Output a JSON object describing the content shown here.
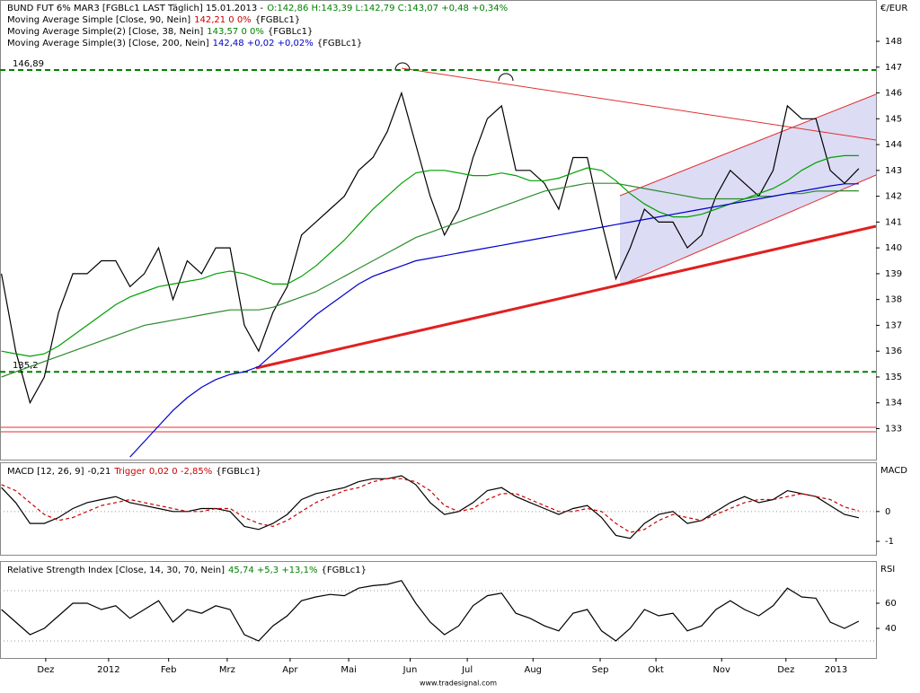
{
  "chart_data": [
    {
      "type": "line",
      "axis_title": "€/EUR",
      "xlim": [
        -0.1,
        61.2
      ],
      "ylim": [
        131.8,
        149.6
      ],
      "yticks": [
        133,
        134,
        135,
        136,
        137,
        138,
        139,
        140,
        141,
        142,
        143,
        144,
        145,
        146,
        147,
        148
      ],
      "levels": [
        {
          "value": 146.89,
          "label": "146,89"
        },
        {
          "value": 135.2,
          "label": "135,2"
        }
      ],
      "level_color": "#008000",
      "series": [
        {
          "name": "BUND FUT 6% MAR3 [FGBLc1 LAST Täglich] 15.01.2013 -",
          "legend_value": "O:142,86 H:143,39 L:142,79 C:143,07 +0,48 +0,34%",
          "legend_color": "#008000",
          "color": "#000000",
          "values": [
            139,
            136,
            134,
            135,
            137.5,
            139,
            139,
            139.5,
            139.5,
            138.5,
            139,
            140,
            138,
            139.5,
            139,
            140,
            140,
            137,
            136,
            137.5,
            138.5,
            140.5,
            141,
            141.5,
            142,
            143,
            143.5,
            144.5,
            146,
            144,
            142,
            140.5,
            141.5,
            143.5,
            145,
            145.5,
            143,
            143,
            142.5,
            141.5,
            143.5,
            143.5,
            141,
            138.8,
            140,
            141.5,
            141,
            141,
            140,
            140.5,
            142,
            143,
            142.5,
            142,
            143,
            145.5,
            145,
            145,
            143,
            142.5,
            143.07
          ]
        },
        {
          "name": "Moving Average Simple [Close, 90, Nein]",
          "legend_value": "142,21 0 0%",
          "legend_color": "#cc0000",
          "legend_suffix": "{FGBLc1}",
          "color": "#2e8b2e",
          "values": [
            135,
            135.2,
            135.4,
            135.6,
            135.8,
            136,
            136.2,
            136.4,
            136.6,
            136.8,
            137,
            137.1,
            137.2,
            137.3,
            137.4,
            137.5,
            137.6,
            137.6,
            137.6,
            137.7,
            137.9,
            138.1,
            138.3,
            138.6,
            138.9,
            139.2,
            139.5,
            139.8,
            140.1,
            140.4,
            140.6,
            140.8,
            141,
            141.2,
            141.4,
            141.6,
            141.8,
            142,
            142.2,
            142.3,
            142.4,
            142.5,
            142.5,
            142.5,
            142.4,
            142.3,
            142.2,
            142.1,
            142,
            141.9,
            141.9,
            141.9,
            141.9,
            142,
            142,
            142.1,
            142.1,
            142.2,
            142.2,
            142.21,
            142.21
          ]
        },
        {
          "name": "Moving Average Simple(2) [Close, 38, Nein]",
          "legend_value": "143,57 0 0%",
          "legend_color": "#008000",
          "legend_suffix": "{FGBLc1}",
          "color": "#00a000",
          "values": [
            136,
            135.9,
            135.8,
            135.9,
            136.2,
            136.6,
            137,
            137.4,
            137.8,
            138.1,
            138.3,
            138.5,
            138.6,
            138.7,
            138.8,
            139,
            139.1,
            139,
            138.8,
            138.6,
            138.6,
            138.9,
            139.3,
            139.8,
            140.3,
            140.9,
            141.5,
            142,
            142.5,
            142.9,
            143,
            143,
            142.9,
            142.8,
            142.8,
            142.9,
            142.8,
            142.6,
            142.6,
            142.7,
            142.9,
            143.1,
            143,
            142.6,
            142.1,
            141.7,
            141.4,
            141.2,
            141.2,
            141.3,
            141.5,
            141.7,
            141.9,
            142.1,
            142.3,
            142.6,
            143,
            143.3,
            143.5,
            143.57,
            143.57
          ]
        },
        {
          "name": "Moving Average Simple(3) [Close, 200, Nein]",
          "legend_value": "142,48 +0,02 +0,02%",
          "legend_color": "#0000cc",
          "legend_suffix": "{FGBLc1}",
          "color": "#0000cc",
          "values": [
            null,
            null,
            null,
            null,
            null,
            null,
            null,
            null,
            null,
            131.9,
            132.5,
            133.1,
            133.7,
            134.2,
            134.6,
            134.9,
            135.1,
            135.2,
            135.4,
            135.9,
            136.4,
            136.9,
            137.4,
            137.8,
            138.2,
            138.6,
            138.9,
            139.1,
            139.3,
            139.5,
            139.6,
            139.7,
            139.8,
            139.9,
            140,
            140.1,
            140.2,
            140.3,
            140.4,
            140.5,
            140.6,
            140.7,
            140.8,
            140.9,
            141,
            141.1,
            141.2,
            141.3,
            141.4,
            141.5,
            141.6,
            141.7,
            141.8,
            141.9,
            142,
            142.1,
            142.2,
            142.3,
            142.4,
            142.48,
            142.48
          ]
        }
      ]
    },
    {
      "type": "line",
      "axis_title": "MACD",
      "xlim": [
        -0.1,
        61.2
      ],
      "ylim": [
        -1.45,
        1.65
      ],
      "yticks": [
        -1,
        0
      ],
      "levels": [
        0
      ],
      "level_color": "#999999",
      "series": [
        {
          "name": "MACD [12, 26, 9]",
          "legend_value": "-0,21",
          "legend_color": "#000000",
          "color": "#000000",
          "values": [
            0.8,
            0.3,
            -0.4,
            -0.4,
            -0.2,
            0.1,
            0.3,
            0.4,
            0.5,
            0.3,
            0.2,
            0.1,
            0,
            0,
            0.1,
            0.1,
            0,
            -0.5,
            -0.6,
            -0.4,
            -0.1,
            0.4,
            0.6,
            0.7,
            0.8,
            1.0,
            1.1,
            1.1,
            1.2,
            0.9,
            0.3,
            -0.1,
            0,
            0.3,
            0.7,
            0.8,
            0.5,
            0.3,
            0.1,
            -0.1,
            0.1,
            0.2,
            -0.2,
            -0.8,
            -0.9,
            -0.4,
            -0.1,
            0,
            -0.4,
            -0.3,
            0,
            0.3,
            0.5,
            0.3,
            0.4,
            0.7,
            0.6,
            0.5,
            0.2,
            -0.1,
            -0.21
          ]
        },
        {
          "name": "Trigger",
          "legend_value": "0,02 0 -2,85%",
          "legend_color": "#cc0000",
          "legend_suffix": "{FGBLc1}",
          "color": "#cc0000",
          "dashed": true,
          "values": [
            0.9,
            0.7,
            0.3,
            -0.1,
            -0.3,
            -0.2,
            0,
            0.2,
            0.3,
            0.4,
            0.3,
            0.2,
            0.1,
            0,
            0,
            0.1,
            0.1,
            -0.2,
            -0.4,
            -0.5,
            -0.3,
            0,
            0.3,
            0.5,
            0.7,
            0.8,
            1.0,
            1.1,
            1.1,
            1.0,
            0.7,
            0.2,
            0,
            0.1,
            0.4,
            0.6,
            0.6,
            0.4,
            0.2,
            0,
            0,
            0.1,
            0,
            -0.4,
            -0.7,
            -0.6,
            -0.3,
            -0.1,
            -0.2,
            -0.3,
            -0.1,
            0.1,
            0.3,
            0.4,
            0.4,
            0.5,
            0.6,
            0.5,
            0.4,
            0.15,
            0.02
          ]
        }
      ]
    },
    {
      "type": "line",
      "axis_title": "RSI",
      "xlim": [
        -0.1,
        61.2
      ],
      "ylim": [
        16.4,
        93.6
      ],
      "yticks": [
        40,
        60
      ],
      "levels": [
        30,
        70
      ],
      "level_color": "#999999",
      "xticks": [
        {
          "value": 3.1,
          "label": "Dez"
        },
        {
          "value": 7.5,
          "label": "2012"
        },
        {
          "value": 11.7,
          "label": "Feb"
        },
        {
          "value": 15.8,
          "label": "Mrz"
        },
        {
          "value": 20.2,
          "label": "Apr"
        },
        {
          "value": 24.3,
          "label": "Mai"
        },
        {
          "value": 28.6,
          "label": "Jun"
        },
        {
          "value": 32.6,
          "label": "Jul"
        },
        {
          "value": 37.2,
          "label": "Aug"
        },
        {
          "value": 41.9,
          "label": "Sep"
        },
        {
          "value": 45.8,
          "label": "Okt"
        },
        {
          "value": 50.4,
          "label": "Nov"
        },
        {
          "value": 54.9,
          "label": "Dez"
        },
        {
          "value": 58.4,
          "label": "2013"
        }
      ],
      "series": [
        {
          "name": "Relative Strength Index [Close, 14, 30, 70, Nein]",
          "legend_value": "45,74 +5,3 +13,1%",
          "legend_color": "#008000",
          "legend_suffix": "{FGBLc1}",
          "color": "#000000",
          "values": [
            55,
            45,
            35,
            40,
            50,
            60,
            60,
            55,
            58,
            48,
            55,
            62,
            45,
            55,
            52,
            58,
            55,
            35,
            30,
            42,
            50,
            62,
            65,
            67,
            66,
            72,
            74,
            75,
            78,
            60,
            45,
            35,
            42,
            58,
            66,
            68,
            52,
            48,
            42,
            38,
            52,
            55,
            38,
            30,
            40,
            55,
            50,
            52,
            38,
            42,
            55,
            62,
            55,
            50,
            58,
            72,
            65,
            64,
            45,
            40,
            45.74
          ]
        }
      ]
    }
  ],
  "footer": "www.tradesignal.com"
}
